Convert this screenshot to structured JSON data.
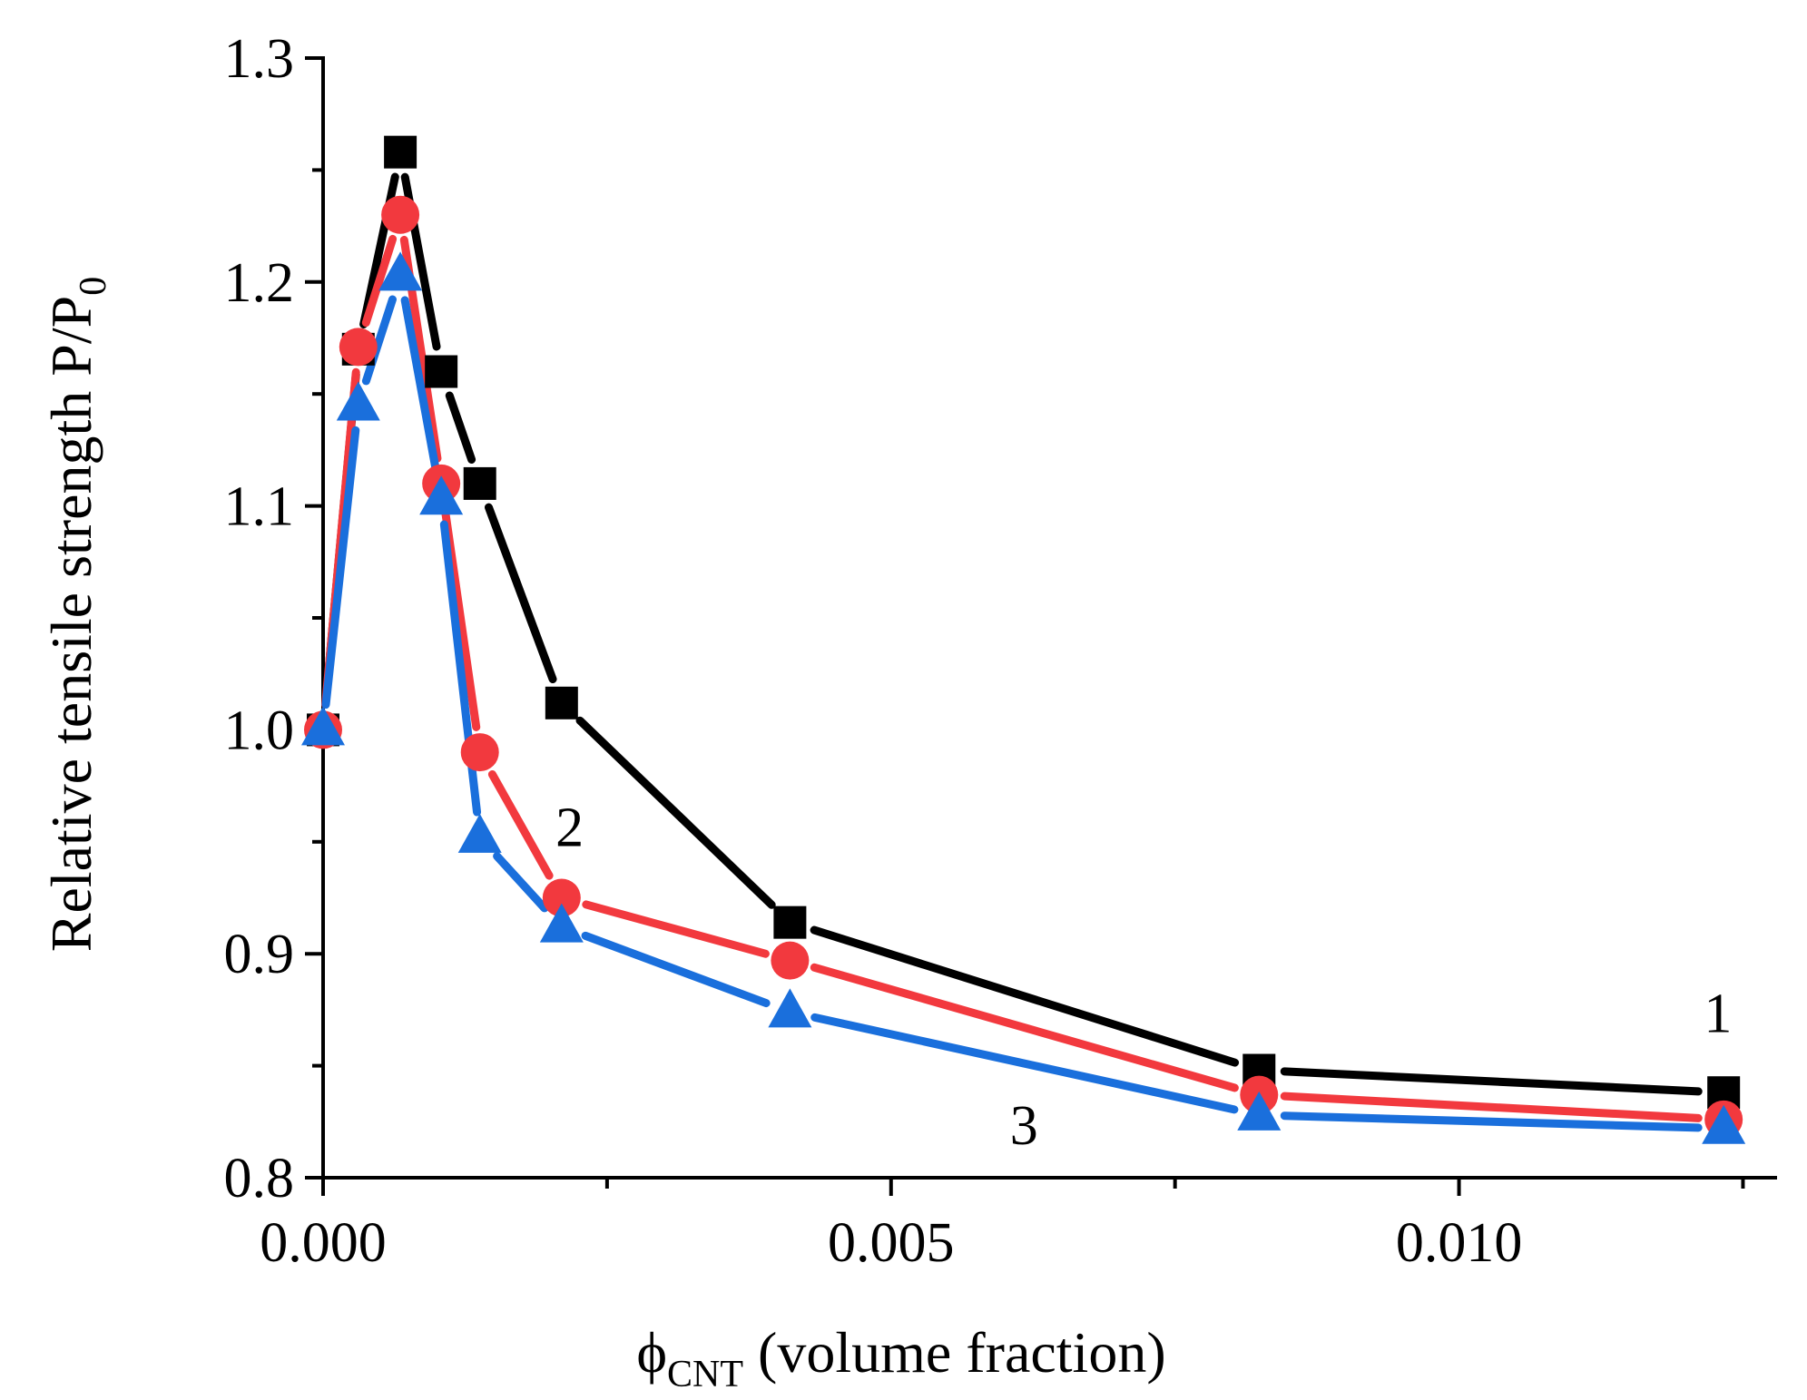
{
  "chart_data": {
    "type": "line",
    "xlabel": {
      "symbol": "ϕ",
      "subscript": "CNT",
      "rest": " (volume fraction)"
    },
    "ylabel": {
      "main": "Relative tensile strength P/P",
      "subscript": "0"
    },
    "xlim": [
      0,
      0.0128
    ],
    "ylim": [
      0.8,
      1.3
    ],
    "x_ticks": [
      {
        "value": 0.0,
        "label": "0.000"
      },
      {
        "value": 0.005,
        "label": "0.005"
      },
      {
        "value": 0.01,
        "label": "0.010"
      }
    ],
    "x_minor_ticks": [
      0.0025,
      0.0075,
      0.0125
    ],
    "y_ticks": [
      {
        "value": 0.8,
        "label": "0.8"
      },
      {
        "value": 0.9,
        "label": "0.9"
      },
      {
        "value": 1.0,
        "label": "1.0"
      },
      {
        "value": 1.1,
        "label": "1.1"
      },
      {
        "value": 1.2,
        "label": "1.2"
      },
      {
        "value": 1.3,
        "label": "1.3"
      }
    ],
    "y_minor_ticks": [
      0.85,
      0.95,
      1.05,
      1.15,
      1.25
    ],
    "grid": false,
    "legend": "none",
    "series": [
      {
        "label": "1",
        "marker": "square",
        "color": "#000000",
        "label_at": {
          "x": 0.01228,
          "y": 0.865
        },
        "x": [
          0.0,
          0.00031,
          0.00068,
          0.00104,
          0.00138,
          0.0021,
          0.00411,
          0.00824,
          0.01233
        ],
        "y": [
          1.0,
          1.17,
          1.258,
          1.16,
          1.11,
          1.012,
          0.914,
          0.848,
          0.838
        ]
      },
      {
        "label": "2",
        "marker": "circle",
        "color": "#f2393e",
        "label_at": {
          "x": 0.00217,
          "y": 0.948
        },
        "x": [
          0.0,
          0.00031,
          0.00068,
          0.00104,
          0.00138,
          0.0021,
          0.00411,
          0.00824,
          0.01233
        ],
        "y": [
          1.0,
          1.171,
          1.23,
          1.11,
          0.99,
          0.925,
          0.897,
          0.837,
          0.826
        ]
      },
      {
        "label": "3",
        "marker": "triangle",
        "color": "#1a6fdc",
        "label_at": {
          "x": 0.00617,
          "y": 0.815
        },
        "x": [
          0.0,
          0.00031,
          0.00068,
          0.00104,
          0.00138,
          0.0021,
          0.00411,
          0.00824,
          0.01233
        ],
        "y": [
          1.0,
          1.145,
          1.203,
          1.103,
          0.952,
          0.912,
          0.874,
          0.828,
          0.822
        ]
      }
    ]
  }
}
